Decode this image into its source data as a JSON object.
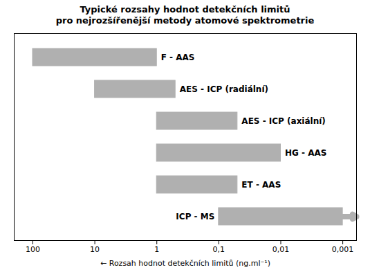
{
  "chart_data": {
    "type": "bar",
    "orientation": "horizontal",
    "title": "Typické rozsahy hodnot detekčních limitů",
    "subtitle": "pro nejrozšířenější metody atomové spektrometrie",
    "x_label": "Rozsah hodnot detekčních limitů (ng.ml⁻¹)",
    "categories": [
      "F - AAS",
      "AES - ICP (radiální)",
      "AES - ICP (axiální)",
      "HG - AAS",
      "ET - AAS",
      "ICP - MS"
    ],
    "values_from": [
      100,
      10,
      1,
      1,
      1,
      0.1
    ],
    "values_to": [
      1,
      0.5,
      0.05,
      0.01,
      0.05,
      0.001
    ],
    "open_ended": [
      false,
      false,
      false,
      false,
      false,
      true
    ],
    "color": "#b0b0b0",
    "log": "x",
    "xlim": [
      200,
      0.0006
    ],
    "xticks": [
      100,
      10,
      1,
      {
        "value": 0.1,
        "label": "0,1"
      },
      {
        "value": 0.01,
        "label": "0,01"
      },
      {
        "value": 0.001,
        "label": "0,001"
      }
    ],
    "grid": false,
    "tick_labels": "x"
  }
}
